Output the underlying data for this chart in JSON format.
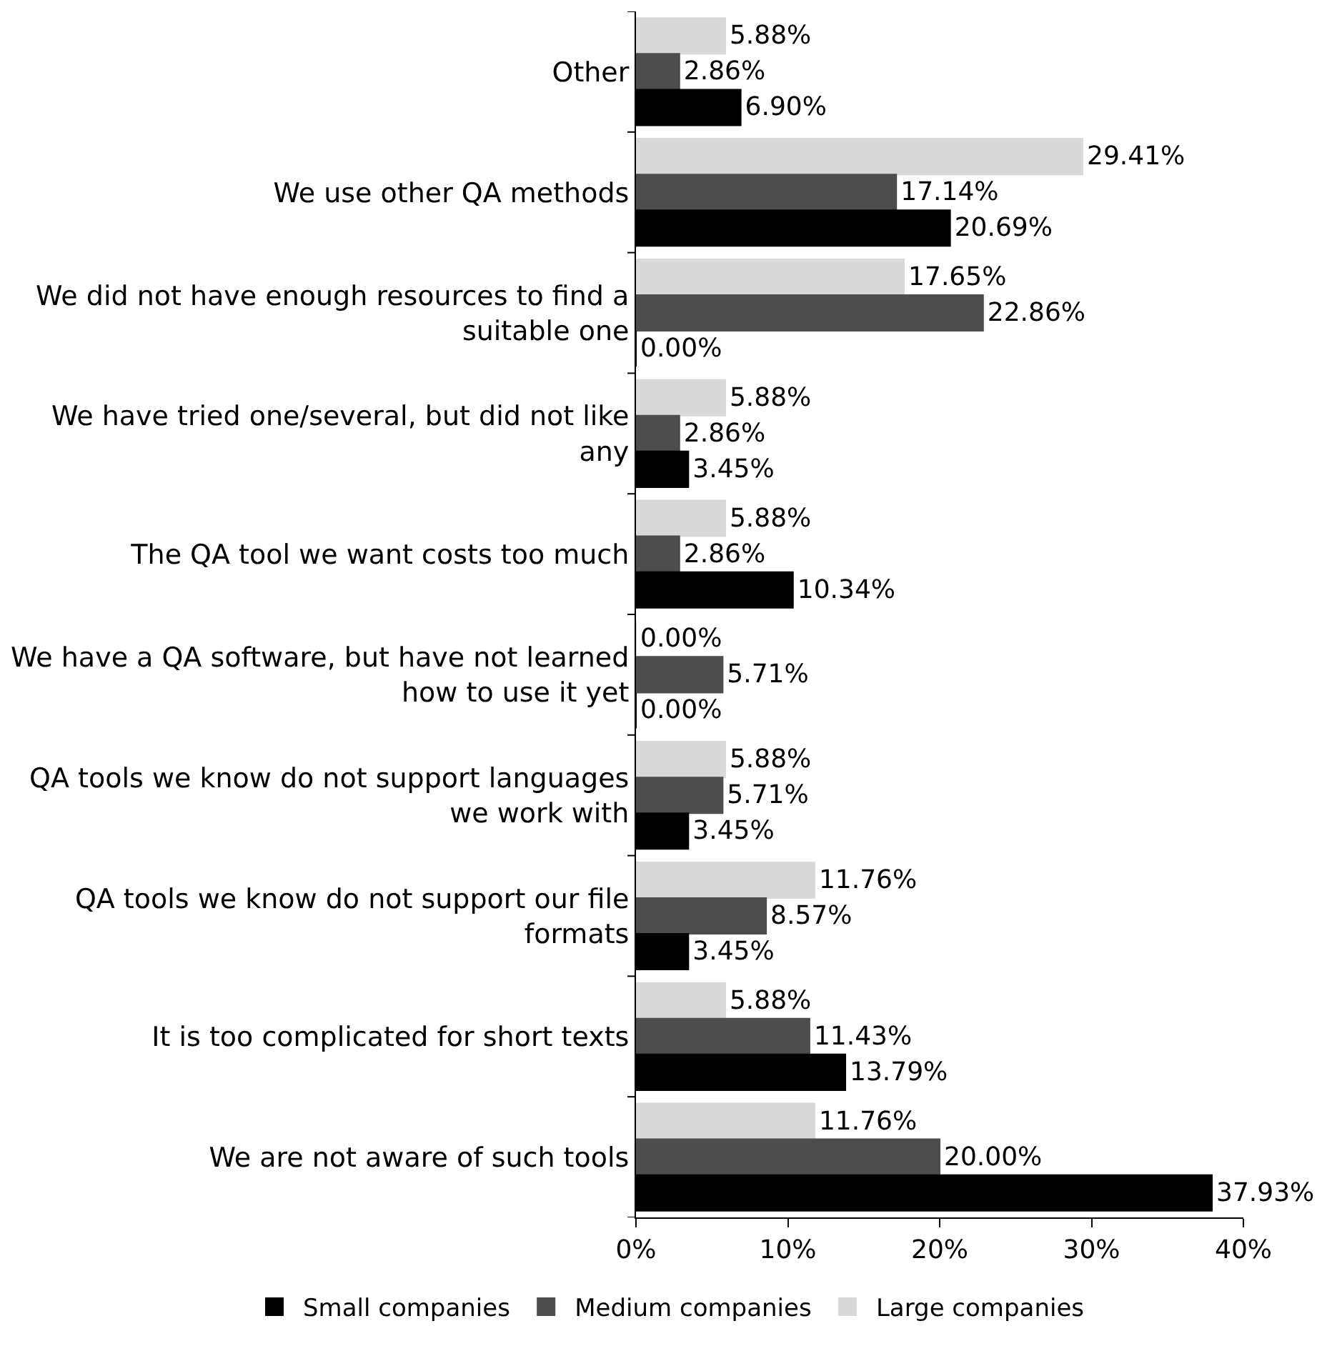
{
  "chart_data": {
    "type": "bar",
    "orientation": "horizontal",
    "categories": [
      "Other",
      "We use other QA methods",
      "We did not have enough resources to find a suitable one",
      "We have tried one/several, but did not like any",
      "The QA tool we want costs too much",
      "We have a QA software, but have not learned how to use it yet",
      "QA tools we know do not support languages we work with",
      "QA tools we know do not support our file formats",
      "It is too complicated for short texts",
      "We are not aware of such tools"
    ],
    "series": [
      {
        "name": "Small companies",
        "color": "#000000",
        "values": [
          6.9,
          20.69,
          0.0,
          3.45,
          10.34,
          0.0,
          3.45,
          3.45,
          13.79,
          37.93
        ],
        "value_labels": [
          "6.90%",
          "20.69%",
          "0.00%",
          "3.45%",
          "10.34%",
          "0.00%",
          "3.45%",
          "3.45%",
          "13.79%",
          "37.93%"
        ]
      },
      {
        "name": "Medium companies",
        "color": "#4d4d4d",
        "values": [
          2.86,
          17.14,
          22.86,
          2.86,
          2.86,
          5.71,
          5.71,
          8.57,
          11.43,
          20.0
        ],
        "value_labels": [
          "2.86%",
          "17.14%",
          "22.86%",
          "2.86%",
          "2.86%",
          "5.71%",
          "5.71%",
          "8.57%",
          "11.43%",
          "20.00%"
        ]
      },
      {
        "name": "Large companies",
        "color": "#d9d9d9",
        "values": [
          5.88,
          29.41,
          17.65,
          5.88,
          5.88,
          0.0,
          5.88,
          11.76,
          5.88,
          11.76
        ],
        "value_labels": [
          "5.88%",
          "29.41%",
          "17.65%",
          "5.88%",
          "5.88%",
          "0.00%",
          "5.88%",
          "11.76%",
          "5.88%",
          "11.76%"
        ]
      }
    ],
    "xlim": [
      0,
      40
    ],
    "xticks": [
      {
        "value": 0,
        "label": "0%"
      },
      {
        "value": 10,
        "label": "10%"
      },
      {
        "value": 20,
        "label": "20%"
      },
      {
        "value": 30,
        "label": "30%"
      },
      {
        "value": 40,
        "label": "40%"
      }
    ],
    "legend": "bottom"
  }
}
